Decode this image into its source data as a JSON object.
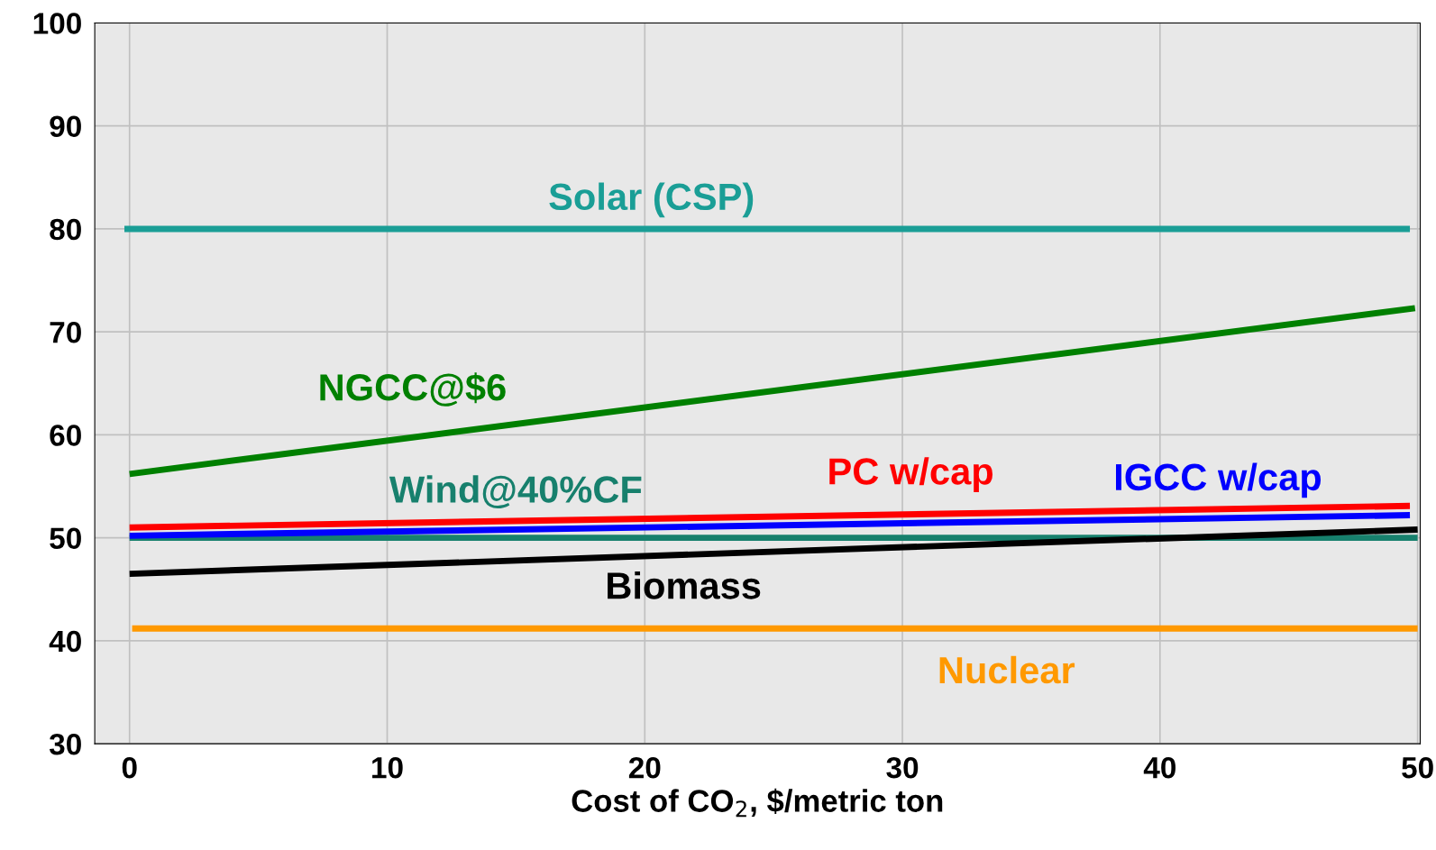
{
  "chart_data": {
    "type": "line",
    "xlabel": "Cost of CO$_{2}$, $/metric ton",
    "xlim": [
      -1.35,
      50.1
    ],
    "ylim": [
      30,
      100
    ],
    "xticks": [
      0,
      10,
      20,
      30,
      40,
      50
    ],
    "yticks": [
      30,
      40,
      50,
      60,
      70,
      80,
      90,
      100
    ],
    "grid": true,
    "legend": false,
    "marker": "none",
    "line_style": "solid",
    "series": [
      {
        "name": "Solar (CSP)",
        "color": "#1a9e96",
        "x": [
          -0.2,
          49.7
        ],
        "values": [
          80,
          80
        ]
      },
      {
        "name": "NGCC@$6",
        "color": "#008000",
        "x": [
          0,
          49.9
        ],
        "values": [
          56.2,
          72.3
        ]
      },
      {
        "name": "Wind@40%CF",
        "color": "#17806d",
        "x": [
          0,
          50
        ],
        "values": [
          50,
          50
        ]
      },
      {
        "name": "PC w/cap",
        "color": "#ff0000",
        "x": [
          0,
          49.7
        ],
        "values": [
          51,
          53.1
        ]
      },
      {
        "name": "IGCC w/cap",
        "color": "#0000ff",
        "x": [
          0,
          49.7
        ],
        "values": [
          50.2,
          52.2
        ]
      },
      {
        "name": "Biomass",
        "color": "#000000",
        "x": [
          0,
          50
        ],
        "values": [
          46.5,
          50.8
        ]
      },
      {
        "name": "Nuclear",
        "color": "#ff9900",
        "x": [
          0.1,
          50
        ],
        "values": [
          41.2,
          41.2
        ]
      }
    ]
  }
}
